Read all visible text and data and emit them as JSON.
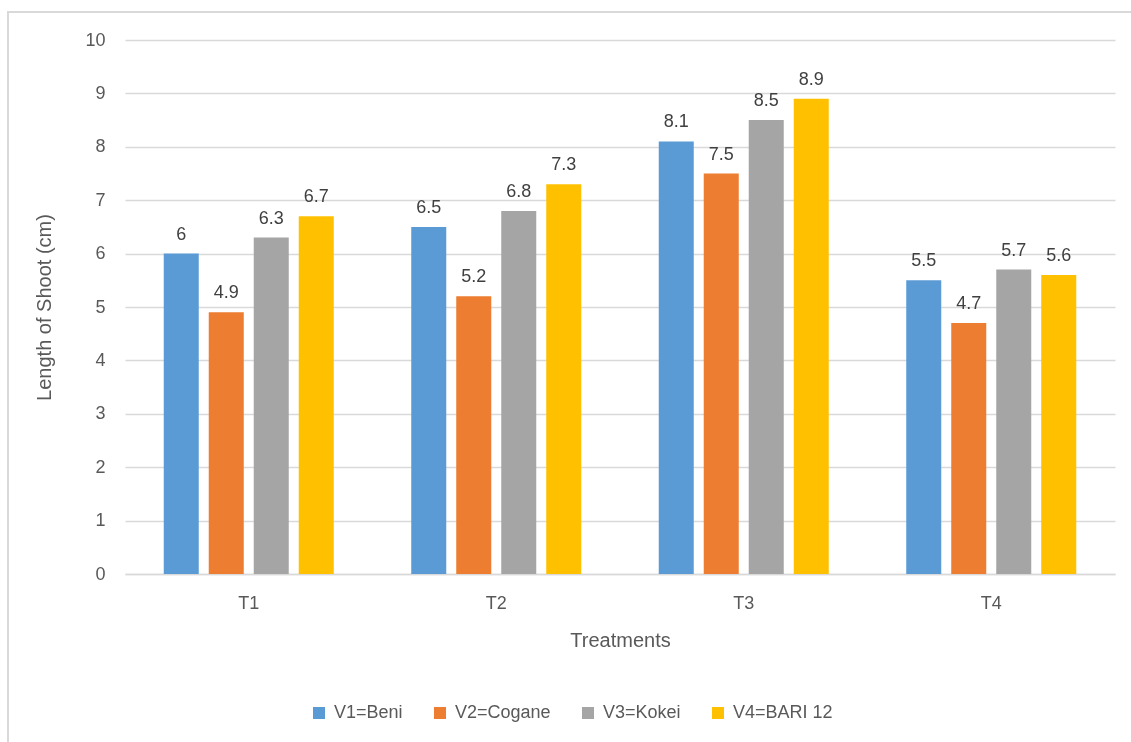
{
  "chart_data": {
    "type": "bar",
    "xlabel": "Treatments",
    "ylabel": "Length of Shoot (cm)",
    "categories": [
      "T1",
      "T2",
      "T3",
      "T4"
    ],
    "series": [
      {
        "name": "V1=Beni",
        "color": "#5b9bd5",
        "values": [
          6,
          6.5,
          8.1,
          5.5
        ]
      },
      {
        "name": "V2=Cogane",
        "color": "#ed7d31",
        "values": [
          4.9,
          5.2,
          7.5,
          4.7
        ]
      },
      {
        "name": "V3=Kokei",
        "color": "#a5a5a5",
        "values": [
          6.3,
          6.8,
          8.5,
          5.7
        ]
      },
      {
        "name": "V4=BARI 12",
        "color": "#ffc000",
        "values": [
          6.7,
          7.3,
          8.9,
          5.6
        ]
      }
    ],
    "ylim": [
      0,
      10
    ],
    "yticks": [
      0,
      1,
      2,
      3,
      4,
      5,
      6,
      7,
      8,
      9,
      10
    ],
    "grid": "y",
    "legend": "bottom",
    "data_labels": true
  }
}
